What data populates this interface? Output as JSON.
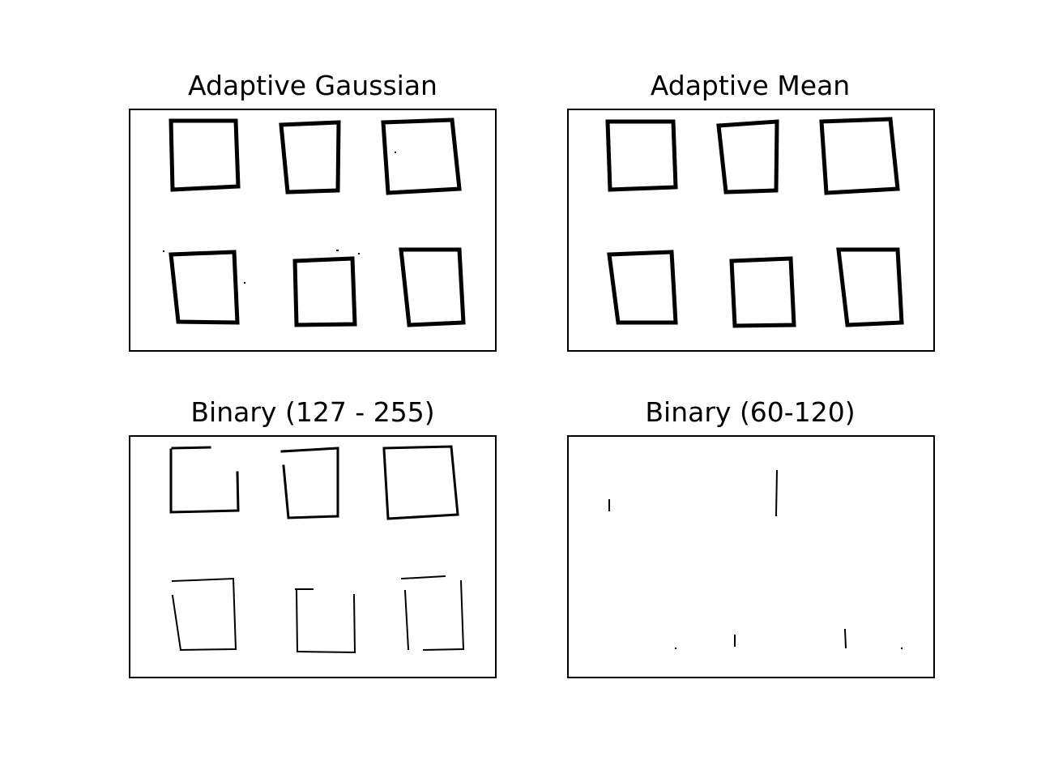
{
  "figure": {
    "panels": [
      {
        "id": "adaptive-gaussian",
        "title": "Adaptive Gaussian"
      },
      {
        "id": "adaptive-mean",
        "title": "Adaptive Mean"
      },
      {
        "id": "binary-127-255",
        "title": "Binary (127 - 255)"
      },
      {
        "id": "binary-60-120",
        "title": "Binary (60-120)"
      }
    ]
  },
  "colors": {
    "background": "#ffffff",
    "ink": "#000000"
  }
}
